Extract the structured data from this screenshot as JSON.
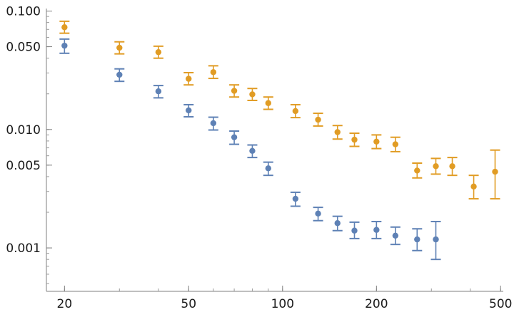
{
  "chart_data": {
    "type": "scatter",
    "title": "",
    "xlabel": "",
    "ylabel": "",
    "x_scale": "log",
    "y_scale": "log",
    "xlim": [
      17.5,
      510
    ],
    "ylim": [
      0.00043,
      0.105
    ],
    "x_ticks": [
      {
        "value": 20,
        "label": "20"
      },
      {
        "value": 50,
        "label": "50"
      },
      {
        "value": 100,
        "label": "100"
      },
      {
        "value": 200,
        "label": "200"
      },
      {
        "value": 500,
        "label": "500"
      }
    ],
    "y_ticks": [
      {
        "value": 0.1,
        "label": "0.100"
      },
      {
        "value": 0.05,
        "label": "0.050"
      },
      {
        "value": 0.01,
        "label": "0.010"
      },
      {
        "value": 0.005,
        "label": "0.005"
      },
      {
        "value": 0.001,
        "label": "0.001"
      }
    ],
    "grid": false,
    "legend": "none",
    "series": [
      {
        "color": "#5e81b5",
        "points": [
          {
            "x": 20,
            "y": 0.051,
            "lo": 0.044,
            "hi": 0.058
          },
          {
            "x": 30,
            "y": 0.029,
            "lo": 0.0255,
            "hi": 0.0325
          },
          {
            "x": 40,
            "y": 0.021,
            "lo": 0.0185,
            "hi": 0.0235
          },
          {
            "x": 50,
            "y": 0.0145,
            "lo": 0.0128,
            "hi": 0.0162
          },
          {
            "x": 60,
            "y": 0.0113,
            "lo": 0.0099,
            "hi": 0.0127
          },
          {
            "x": 70,
            "y": 0.0086,
            "lo": 0.0075,
            "hi": 0.0097
          },
          {
            "x": 80,
            "y": 0.0066,
            "lo": 0.0058,
            "hi": 0.0074
          },
          {
            "x": 90,
            "y": 0.0047,
            "lo": 0.0041,
            "hi": 0.0053
          },
          {
            "x": 110,
            "y": 0.0026,
            "lo": 0.00225,
            "hi": 0.00295
          },
          {
            "x": 130,
            "y": 0.00195,
            "lo": 0.0017,
            "hi": 0.0022
          },
          {
            "x": 150,
            "y": 0.00162,
            "lo": 0.0014,
            "hi": 0.00185
          },
          {
            "x": 170,
            "y": 0.0014,
            "lo": 0.0012,
            "hi": 0.00165
          },
          {
            "x": 200,
            "y": 0.00142,
            "lo": 0.0012,
            "hi": 0.00167
          },
          {
            "x": 230,
            "y": 0.00127,
            "lo": 0.00107,
            "hi": 0.0015
          },
          {
            "x": 270,
            "y": 0.00118,
            "lo": 0.00095,
            "hi": 0.00145
          },
          {
            "x": 310,
            "y": 0.00118,
            "lo": 0.0008,
            "hi": 0.00167
          }
        ]
      },
      {
        "color": "#e19c24",
        "points": [
          {
            "x": 20,
            "y": 0.073,
            "lo": 0.065,
            "hi": 0.082
          },
          {
            "x": 30,
            "y": 0.049,
            "lo": 0.0435,
            "hi": 0.055
          },
          {
            "x": 40,
            "y": 0.045,
            "lo": 0.04,
            "hi": 0.0505
          },
          {
            "x": 50,
            "y": 0.0268,
            "lo": 0.0238,
            "hi": 0.0302
          },
          {
            "x": 60,
            "y": 0.0305,
            "lo": 0.027,
            "hi": 0.0345
          },
          {
            "x": 70,
            "y": 0.0212,
            "lo": 0.0188,
            "hi": 0.0238
          },
          {
            "x": 80,
            "y": 0.0198,
            "lo": 0.0176,
            "hi": 0.0222
          },
          {
            "x": 90,
            "y": 0.0167,
            "lo": 0.0148,
            "hi": 0.0188
          },
          {
            "x": 110,
            "y": 0.0143,
            "lo": 0.0126,
            "hi": 0.0162
          },
          {
            "x": 130,
            "y": 0.0121,
            "lo": 0.0107,
            "hi": 0.0137
          },
          {
            "x": 150,
            "y": 0.0095,
            "lo": 0.0083,
            "hi": 0.0108
          },
          {
            "x": 170,
            "y": 0.0082,
            "lo": 0.0072,
            "hi": 0.0093
          },
          {
            "x": 200,
            "y": 0.0079,
            "lo": 0.0069,
            "hi": 0.009
          },
          {
            "x": 230,
            "y": 0.0075,
            "lo": 0.0065,
            "hi": 0.0086
          },
          {
            "x": 270,
            "y": 0.0045,
            "lo": 0.0039,
            "hi": 0.0052
          },
          {
            "x": 310,
            "y": 0.0049,
            "lo": 0.0042,
            "hi": 0.0057
          },
          {
            "x": 350,
            "y": 0.0049,
            "lo": 0.0041,
            "hi": 0.0058
          },
          {
            "x": 410,
            "y": 0.0033,
            "lo": 0.0026,
            "hi": 0.0041
          },
          {
            "x": 480,
            "y": 0.0044,
            "lo": 0.0026,
            "hi": 0.0067
          }
        ]
      }
    ]
  }
}
